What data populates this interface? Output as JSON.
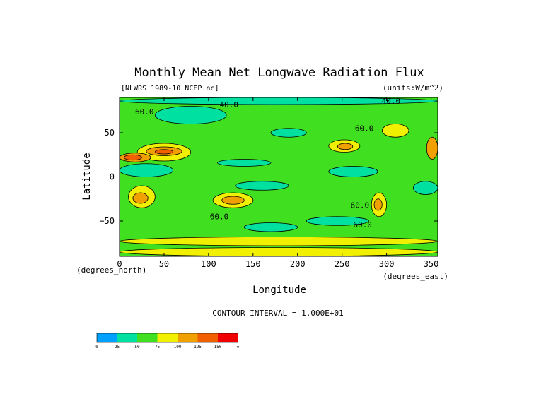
{
  "chart_data": {
    "type": "heatmap",
    "title": "Monthly Mean Net Longwave Radiation Flux",
    "subtitle_left": "[NLWRS_1989-10_NCEP.nc]",
    "subtitle_right": "(units:W/m^2)",
    "xlabel": "Longitude",
    "ylabel": "Latitude",
    "x_unit_note": "(degrees_east)",
    "y_unit_note": "(degrees_north)",
    "xlim": [
      0,
      357.5
    ],
    "ylim": [
      -90,
      90
    ],
    "x_ticks": [
      0,
      50,
      100,
      150,
      200,
      250,
      300,
      350
    ],
    "y_ticks": [
      50,
      0,
      -50
    ],
    "y_tick_labels": [
      "50",
      "0",
      "−50"
    ],
    "contour_note": "CONTOUR INTERVAL = 1.000E+01",
    "contour_labels": [
      {
        "text": "40.0",
        "x": 123,
        "y": 79
      },
      {
        "text": "40.0",
        "x": 305,
        "y": 83
      },
      {
        "text": "60.0",
        "x": 28,
        "y": 71
      },
      {
        "text": "60.0",
        "x": 275,
        "y": 52
      },
      {
        "text": "60.0",
        "x": 270,
        "y": -35
      },
      {
        "text": "60.0",
        "x": 273,
        "y": -57
      },
      {
        "text": "60.0",
        "x": 112,
        "y": -48
      }
    ],
    "colorbar": {
      "levels": [
        "0",
        "25",
        "50",
        "75",
        "100",
        "125",
        "150",
        "∞"
      ],
      "colors": [
        "#00a0ff",
        "#00e0a0",
        "#40e020",
        "#f0f000",
        "#f0a000",
        "#f06000",
        "#f00000"
      ]
    },
    "regions": [
      {
        "lon": [
          0,
          357.5
        ],
        "lat": [
          -90,
          90
        ],
        "level": 2
      },
      {
        "lon": [
          20,
          80
        ],
        "lat": [
          18,
          38
        ],
        "level": 3
      },
      {
        "lon": [
          30,
          70
        ],
        "lat": [
          24,
          34
        ],
        "level": 4
      },
      {
        "lon": [
          40,
          60
        ],
        "lat": [
          26,
          31
        ],
        "level": 5
      },
      {
        "lon": [
          0,
          35
        ],
        "lat": [
          17,
          27
        ],
        "level": 4
      },
      {
        "lon": [
          5,
          25
        ],
        "lat": [
          19,
          25
        ],
        "level": 5
      },
      {
        "lon": [
          235,
          270
        ],
        "lat": [
          28,
          42
        ],
        "level": 3
      },
      {
        "lon": [
          245,
          262
        ],
        "lat": [
          31,
          38
        ],
        "level": 4
      },
      {
        "lon": [
          105,
          150
        ],
        "lat": [
          -35,
          -18
        ],
        "level": 3
      },
      {
        "lon": [
          115,
          140
        ],
        "lat": [
          -31,
          -22
        ],
        "level": 4
      },
      {
        "lon": [
          10,
          40
        ],
        "lat": [
          -35,
          -10
        ],
        "level": 3
      },
      {
        "lon": [
          15,
          32
        ],
        "lat": [
          -30,
          -18
        ],
        "level": 4
      },
      {
        "lon": [
          283,
          300
        ],
        "lat": [
          -45,
          -18
        ],
        "level": 3
      },
      {
        "lon": [
          286,
          295
        ],
        "lat": [
          -38,
          -25
        ],
        "level": 4
      },
      {
        "lon": [
          0,
          357.5
        ],
        "lat": [
          -78,
          -68
        ],
        "level": 3
      },
      {
        "lon": [
          0,
          357.5
        ],
        "lat": [
          -90,
          -80
        ],
        "level": 3
      },
      {
        "lon": [
          0,
          357.5
        ],
        "lat": [
          82,
          90
        ],
        "level": 1
      },
      {
        "lon": [
          40,
          120
        ],
        "lat": [
          60,
          80
        ],
        "level": 1
      },
      {
        "lon": [
          110,
          170
        ],
        "lat": [
          12,
          20
        ],
        "level": 1
      },
      {
        "lon": [
          0,
          60
        ],
        "lat": [
          0,
          15
        ],
        "level": 1
      },
      {
        "lon": [
          235,
          290
        ],
        "lat": [
          0,
          12
        ],
        "level": 1
      },
      {
        "lon": [
          140,
          200
        ],
        "lat": [
          -62,
          -52
        ],
        "level": 1
      },
      {
        "lon": [
          210,
          280
        ],
        "lat": [
          -55,
          -45
        ],
        "level": 1
      },
      {
        "lon": [
          130,
          190
        ],
        "lat": [
          -15,
          -5
        ],
        "level": 1
      },
      {
        "lon": [
          330,
          357.5
        ],
        "lat": [
          -20,
          -5
        ],
        "level": 1
      },
      {
        "lon": [
          345,
          357.5
        ],
        "lat": [
          20,
          45
        ],
        "level": 4
      },
      {
        "lon": [
          170,
          210
        ],
        "lat": [
          45,
          55
        ],
        "level": 1
      },
      {
        "lon": [
          295,
          325
        ],
        "lat": [
          45,
          60
        ],
        "level": 3
      }
    ]
  }
}
